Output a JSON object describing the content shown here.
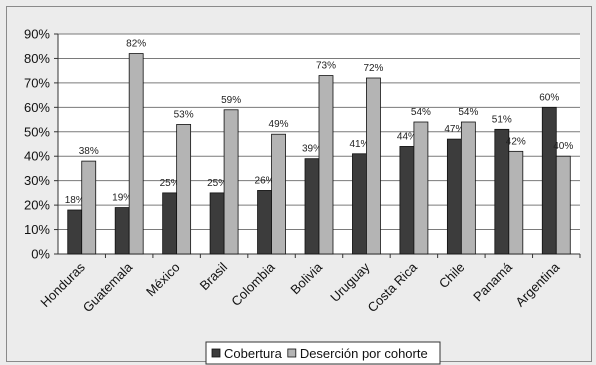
{
  "chart_data": {
    "type": "bar",
    "categories": [
      "Honduras",
      "Guatemala",
      "México",
      "Brasil",
      "Colombia",
      "Bolivia",
      "Uruguay",
      "Costa Rica",
      "Chile",
      "Panamá",
      "Argentina"
    ],
    "series": [
      {
        "name": "Cobertura",
        "color": "#3c3c3c",
        "values": [
          18,
          19,
          25,
          25,
          26,
          39,
          41,
          44,
          47,
          51,
          60
        ]
      },
      {
        "name": "Deserción por cohorte",
        "color": "#b4b4b4",
        "values": [
          38,
          82,
          53,
          59,
          49,
          73,
          72,
          54,
          54,
          42,
          40
        ]
      }
    ],
    "y_ticks": [
      "0%",
      "10%",
      "20%",
      "30%",
      "40%",
      "50%",
      "60%",
      "70%",
      "80%",
      "90%"
    ],
    "ylim": [
      0,
      90
    ],
    "value_suffix": "%",
    "grid": true,
    "legend_position": "bottom-center",
    "title": "",
    "xlabel": "",
    "ylabel": ""
  }
}
